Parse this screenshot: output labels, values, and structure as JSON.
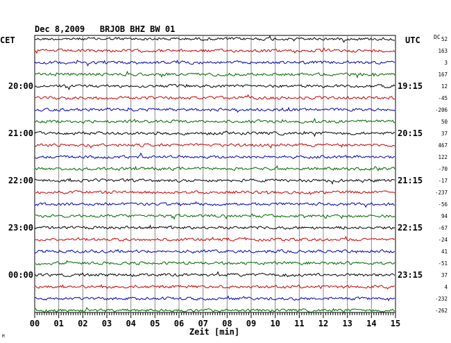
{
  "chart_data": {
    "type": "line",
    "title": "Dec 8,2009   BRJOB BHZ BW 01",
    "left_zone": "CET",
    "right_zone": "UTC",
    "dc_header": "DC",
    "xlabel": "Zeit [min]",
    "x_ticks": [
      "00",
      "01",
      "02",
      "03",
      "04",
      "05",
      "06",
      "07",
      "08",
      "09",
      "10",
      "11",
      "12",
      "13",
      "14",
      "15"
    ],
    "xlim": [
      0,
      15
    ],
    "left_time_labels": [
      "20:00",
      "21:00",
      "22:00",
      "23:00",
      "00:00"
    ],
    "right_time_labels": [
      "19:15",
      "20:15",
      "21:15",
      "22:15",
      "23:15"
    ],
    "trace_colors": [
      "#000000",
      "#cc0000",
      "#0000bb",
      "#006600"
    ],
    "dc_offsets": [
      "52",
      "163",
      "3",
      "167",
      "12",
      "-45",
      "-206",
      "50",
      "37",
      "467",
      "122",
      "-70",
      "-17",
      "-237",
      "-56",
      "94",
      "-67",
      "-24",
      "41",
      "-51",
      "37",
      "4",
      "-232",
      "-262"
    ],
    "footer_mark": "M"
  }
}
